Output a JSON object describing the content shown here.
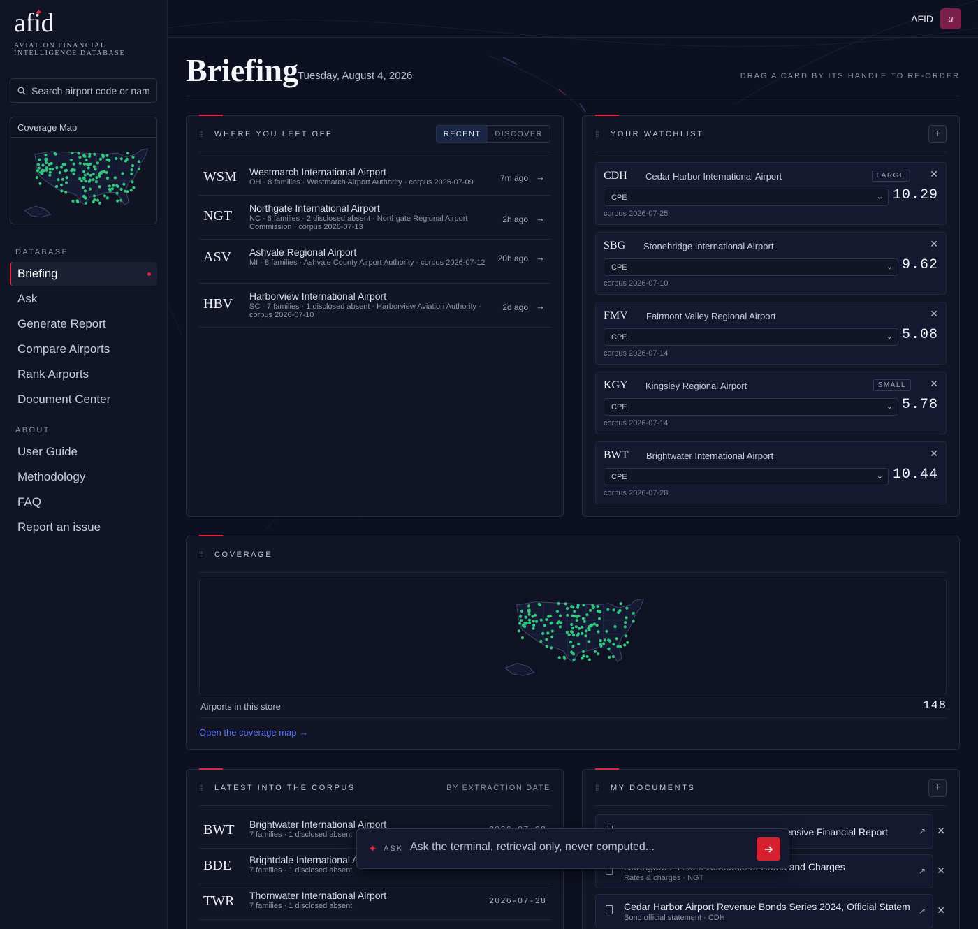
{
  "brand": {
    "word": "afid",
    "subtitle": "AVIATION FINANCIAL INTELLIGENCE DATABASE"
  },
  "sidebar": {
    "search_placeholder": "Search airport code or name",
    "coverage_map_label": "Coverage Map",
    "database_label": "DATABASE",
    "database_items": [
      {
        "label": "Briefing",
        "active": true
      },
      {
        "label": "Ask"
      },
      {
        "label": "Generate Report"
      },
      {
        "label": "Compare Airports"
      },
      {
        "label": "Rank Airports"
      },
      {
        "label": "Document Center"
      }
    ],
    "about_label": "ABOUT",
    "about_items": [
      {
        "label": "User Guide"
      },
      {
        "label": "Methodology"
      },
      {
        "label": "FAQ"
      },
      {
        "label": "Report an issue"
      }
    ]
  },
  "topbar": {
    "user": "AFID",
    "avatar_letter": "a"
  },
  "page": {
    "title": "Briefing",
    "date": "Tuesday, August 4, 2026",
    "hint": "DRAG A CARD BY ITS HANDLE TO RE-ORDER"
  },
  "recent": {
    "title": "WHERE YOU LEFT OFF",
    "tabs": [
      "RECENT",
      "DISCOVER"
    ],
    "rows": [
      {
        "code": "WSM",
        "name": "Westmarch International Airport",
        "meta": "OH · 8 families · Westmarch Airport Authority · corpus 2026-07-09",
        "ago": "7m ago"
      },
      {
        "code": "NGT",
        "name": "Northgate International Airport",
        "meta": "NC · 6 families · 2 disclosed absent · Northgate Regional Airport Commission · corpus 2026-07-13",
        "ago": "2h ago"
      },
      {
        "code": "ASV",
        "name": "Ashvale Regional Airport",
        "meta": "MI · 8 families · Ashvale County Airport Authority · corpus 2026-07-12",
        "ago": "20h ago"
      },
      {
        "code": "HBV",
        "name": "Harborview International Airport",
        "meta": "SC · 7 families · 1 disclosed absent · Harborview Aviation Authority · corpus 2026-07-10",
        "ago": "2d ago"
      }
    ]
  },
  "watchlist": {
    "title": "YOUR WATCHLIST",
    "items": [
      {
        "code": "CDH",
        "name": "Cedar Harbor International Airport",
        "tag": "LARGE",
        "metric": "CPE",
        "value": "10.29",
        "corpus": "corpus 2026-07-25"
      },
      {
        "code": "SBG",
        "name": "Stonebridge International Airport",
        "tag": "",
        "metric": "CPE",
        "value": "9.62",
        "corpus": "corpus 2026-07-10"
      },
      {
        "code": "FMV",
        "name": "Fairmont Valley Regional Airport",
        "tag": "",
        "metric": "CPE",
        "value": "5.08",
        "corpus": "corpus 2026-07-14"
      },
      {
        "code": "KGY",
        "name": "Kingsley Regional Airport",
        "tag": "SMALL",
        "metric": "CPE",
        "value": "5.78",
        "corpus": "corpus 2026-07-14"
      },
      {
        "code": "BWT",
        "name": "Brightwater International Airport",
        "tag": "",
        "metric": "CPE",
        "value": "10.44",
        "corpus": "corpus 2026-07-28"
      }
    ]
  },
  "coverage": {
    "title": "COVERAGE",
    "label": "Airports in this store",
    "count": "148",
    "link": "Open the coverage map →"
  },
  "latest": {
    "title": "LATEST INTO THE CORPUS",
    "sort": "BY EXTRACTION DATE",
    "rows": [
      {
        "code": "BWT",
        "name": "Brightwater International Airport",
        "meta": "7 families · 1 disclosed absent",
        "date": "2026-07-28"
      },
      {
        "code": "BDE",
        "name": "Brightdale International Airport",
        "meta": "7 families · 1 disclosed absent",
        "date": ""
      },
      {
        "code": "TWR",
        "name": "Thornwater International Airport",
        "meta": "7 families · 1 disclosed absent",
        "date": "2026-07-28"
      }
    ]
  },
  "documents": {
    "title": "MY DOCUMENTS",
    "items": [
      {
        "title": "Westmarch FY2025 Annual Comprehensive Financial Report",
        "sub": ""
      },
      {
        "title": "Northgate FY2025 Schedule of Rates and Charges",
        "sub": "Rates & charges · NGT"
      },
      {
        "title": "Cedar Harbor Airport Revenue Bonds Series 2024, Official Statem...",
        "sub": "Bond official statement · CDH"
      }
    ]
  },
  "ask": {
    "label": "ASK",
    "placeholder": "Ask the terminal, retrieval only, never computed..."
  },
  "colors": {
    "accent": "#e8243c",
    "dot": "#33c77e",
    "link": "#5b72f5"
  }
}
